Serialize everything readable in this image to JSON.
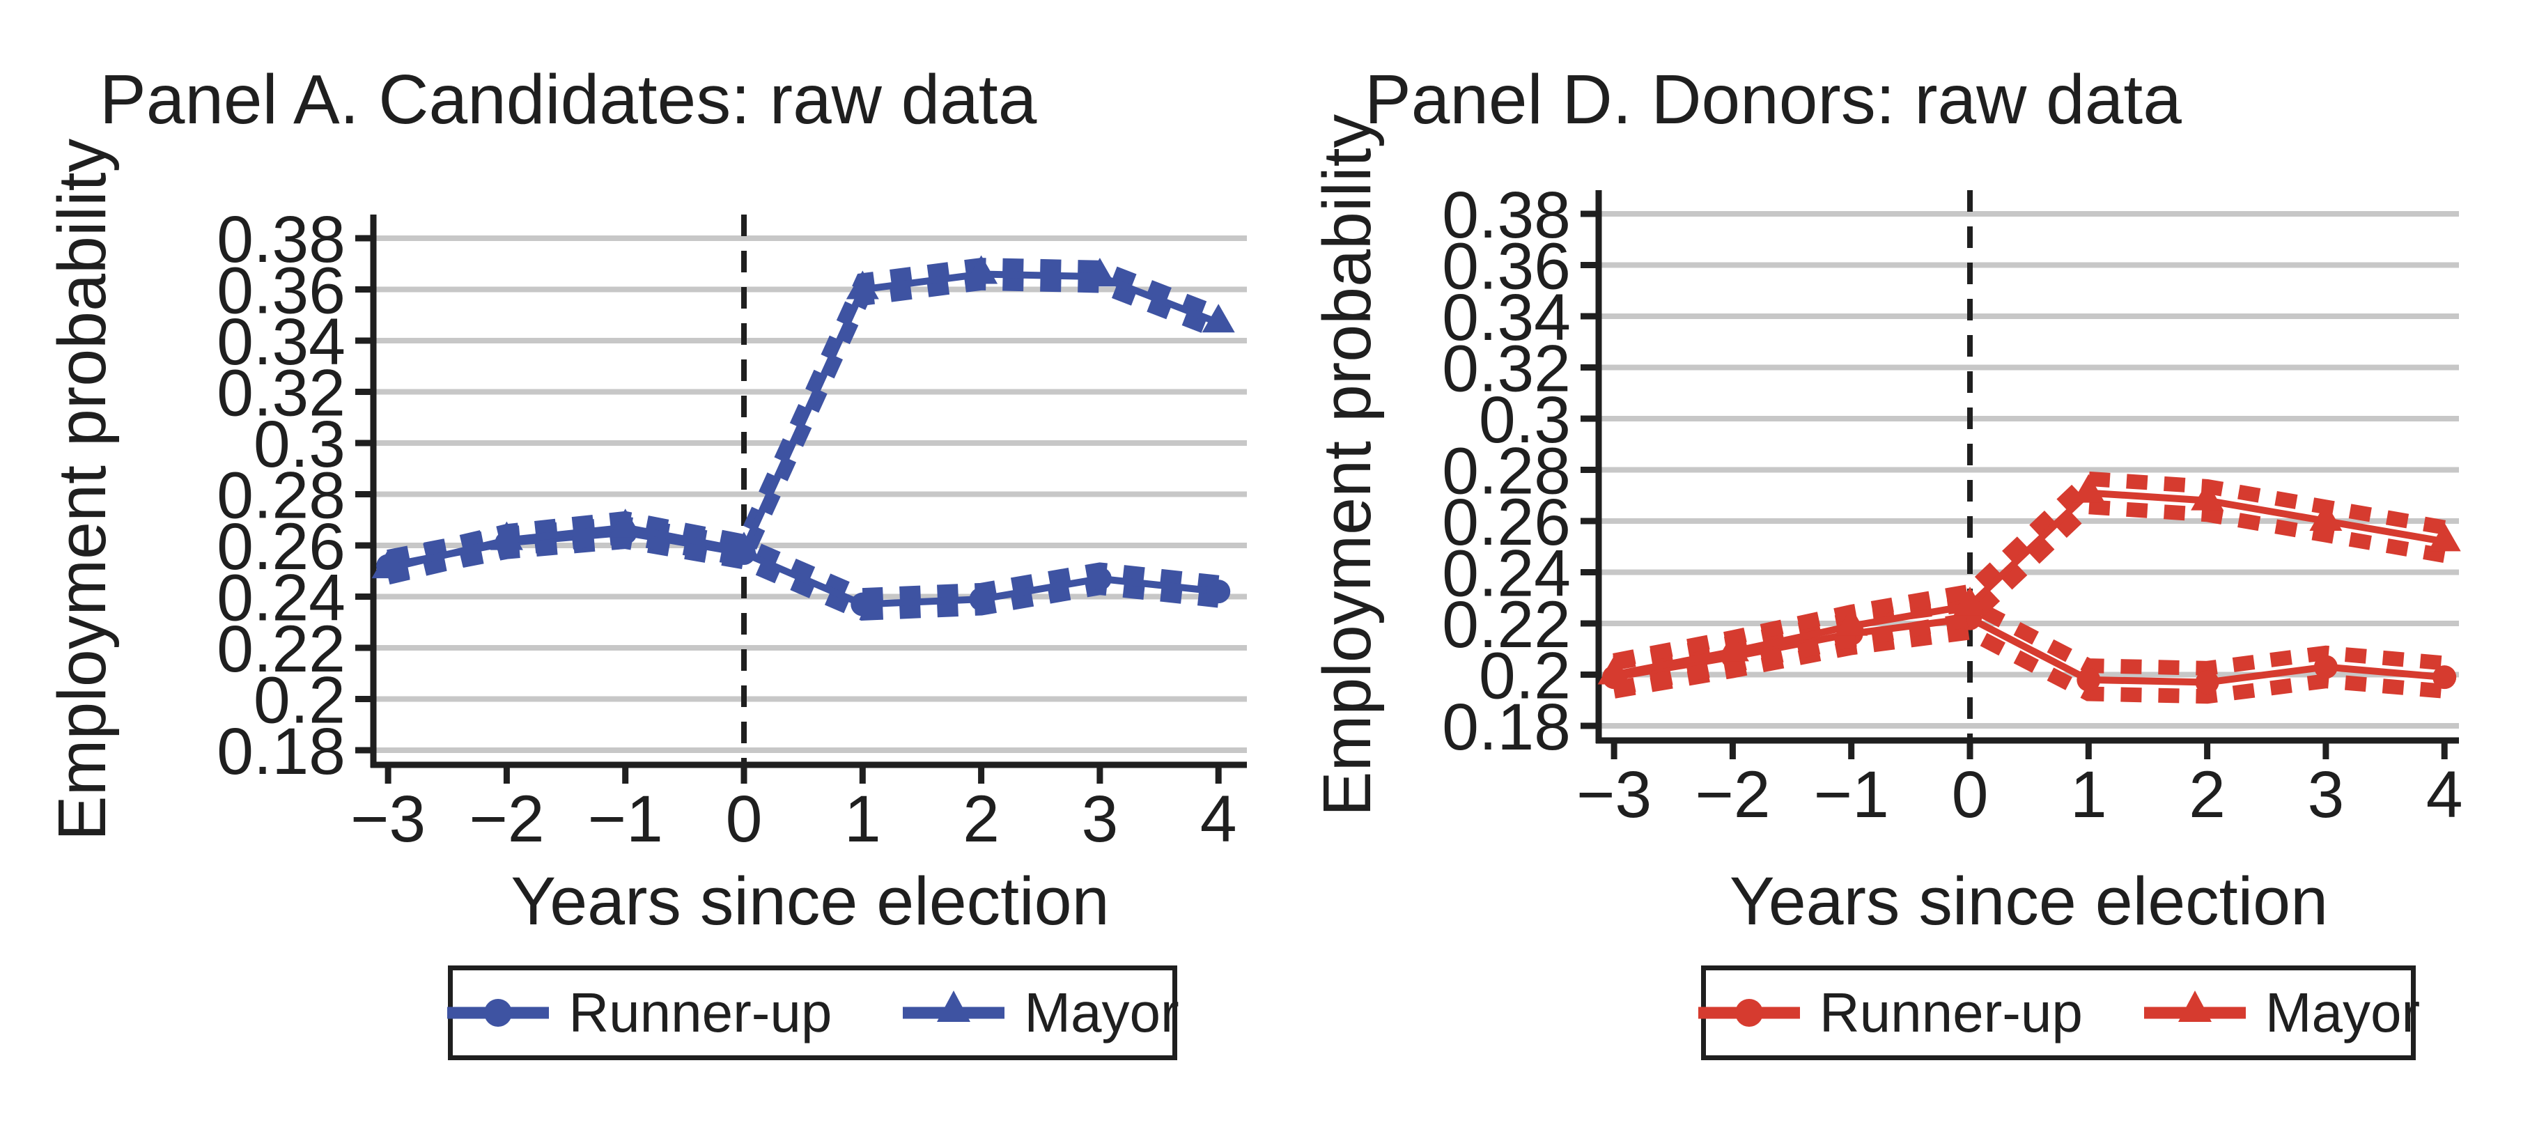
{
  "figure": {
    "background": "#ffffff",
    "text_color": "#1f1f1f",
    "grid_color": "#c7c7c7"
  },
  "chart_data": [
    {
      "id": "panel-a",
      "type": "line",
      "title": "Panel A. Candidates: raw data",
      "xlabel": "Years since election",
      "ylabel": "Employment probability",
      "color": "#3E53A2",
      "x": [
        -3,
        -2,
        -1,
        0,
        1,
        2,
        3,
        4
      ],
      "xtick_labels": [
        "−3",
        "−2",
        "−1",
        "0",
        "1",
        "2",
        "3",
        "4"
      ],
      "yticks": [
        0.38,
        0.36,
        0.34,
        0.32,
        0.3,
        0.28,
        0.26,
        0.24,
        0.22,
        0.2,
        0.18
      ],
      "ytick_labels": [
        "0.38",
        "0.36",
        "0.34",
        "0.32",
        "0.3",
        "0.28",
        "0.26",
        "0.24",
        "0.22",
        "0.2",
        "0.18"
      ],
      "ylim": [
        0.174,
        0.389
      ],
      "xlim": [
        -3.1,
        4.2
      ],
      "grid": "horizontal",
      "legend_position": "bottom",
      "reference_line_x": 0,
      "ci_halfwidth": 0.0035,
      "ci_style": "dashed",
      "series": [
        {
          "name": "Runner-up",
          "marker": "circle",
          "values": [
            0.252,
            0.261,
            0.265,
            0.257,
            0.237,
            0.239,
            0.247,
            0.242
          ]
        },
        {
          "name": "Mayor",
          "marker": "triangle",
          "values": [
            0.251,
            0.262,
            0.267,
            0.258,
            0.36,
            0.366,
            0.365,
            0.347
          ]
        }
      ]
    },
    {
      "id": "panel-d",
      "type": "line",
      "title": "Panel D. Donors: raw data",
      "xlabel": "Years since election",
      "ylabel": "Employment probability",
      "color": "#D63B2F",
      "x": [
        -3,
        -2,
        -1,
        0,
        1,
        2,
        3,
        4
      ],
      "xtick_labels": [
        "−3",
        "−2",
        "−1",
        "0",
        "1",
        "2",
        "3",
        "4"
      ],
      "yticks": [
        0.38,
        0.36,
        0.34,
        0.32,
        0.3,
        0.28,
        0.26,
        0.24,
        0.22,
        0.2,
        0.18
      ],
      "ytick_labels": [
        "0.38",
        "0.36",
        "0.34",
        "0.32",
        "0.3",
        "0.28",
        "0.26",
        "0.24",
        "0.22",
        "0.2",
        "0.18"
      ],
      "ylim": [
        0.174,
        0.389
      ],
      "xlim": [
        -3.1,
        4.1
      ],
      "grid": "horizontal",
      "legend_position": "bottom",
      "reference_line_x": 0,
      "ci_halfwidth": 0.0055,
      "ci_style": "dashed",
      "series": [
        {
          "name": "Runner-up",
          "marker": "circle",
          "values": [
            0.199,
            0.207,
            0.216,
            0.222,
            0.198,
            0.197,
            0.203,
            0.199
          ]
        },
        {
          "name": "Mayor",
          "marker": "triangle",
          "values": [
            0.2,
            0.209,
            0.219,
            0.227,
            0.271,
            0.268,
            0.26,
            0.252
          ]
        }
      ]
    }
  ]
}
